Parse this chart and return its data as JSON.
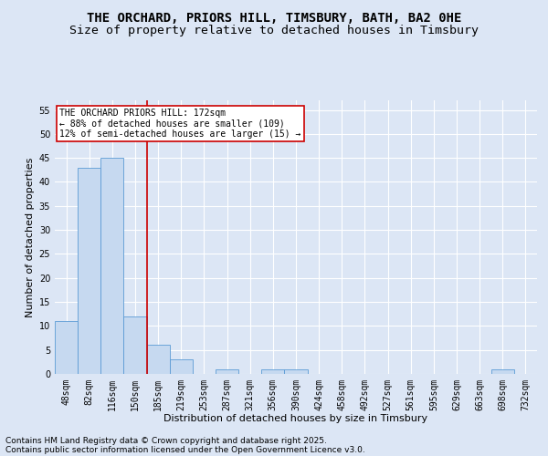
{
  "title1": "THE ORCHARD, PRIORS HILL, TIMSBURY, BATH, BA2 0HE",
  "title2": "Size of property relative to detached houses in Timsbury",
  "xlabel": "Distribution of detached houses by size in Timsbury",
  "ylabel": "Number of detached properties",
  "categories": [
    "48sqm",
    "82sqm",
    "116sqm",
    "150sqm",
    "185sqm",
    "219sqm",
    "253sqm",
    "287sqm",
    "321sqm",
    "356sqm",
    "390sqm",
    "424sqm",
    "458sqm",
    "492sqm",
    "527sqm",
    "561sqm",
    "595sqm",
    "629sqm",
    "663sqm",
    "698sqm",
    "732sqm"
  ],
  "values": [
    11,
    43,
    45,
    12,
    6,
    3,
    0,
    1,
    0,
    1,
    1,
    0,
    0,
    0,
    0,
    0,
    0,
    0,
    0,
    1,
    0
  ],
  "bar_color": "#c6d9f0",
  "bar_edge_color": "#5b9bd5",
  "vline_x": 3.5,
  "vline_color": "#cc0000",
  "annotation_line1": "THE ORCHARD PRIORS HILL: 172sqm",
  "annotation_line2": "← 88% of detached houses are smaller (109)",
  "annotation_line3": "12% of semi-detached houses are larger (15) →",
  "annotation_box_color": "#ffffff",
  "annotation_box_edge_color": "#cc0000",
  "ylim": [
    0,
    57
  ],
  "yticks": [
    0,
    5,
    10,
    15,
    20,
    25,
    30,
    35,
    40,
    45,
    50,
    55
  ],
  "footnote1": "Contains HM Land Registry data © Crown copyright and database right 2025.",
  "footnote2": "Contains public sector information licensed under the Open Government Licence v3.0.",
  "background_color": "#dce6f5",
  "grid_color": "#ffffff",
  "title_fontsize": 10,
  "title2_fontsize": 9.5,
  "axis_label_fontsize": 8,
  "tick_fontsize": 7,
  "annotation_fontsize": 7,
  "footnote_fontsize": 6.5
}
